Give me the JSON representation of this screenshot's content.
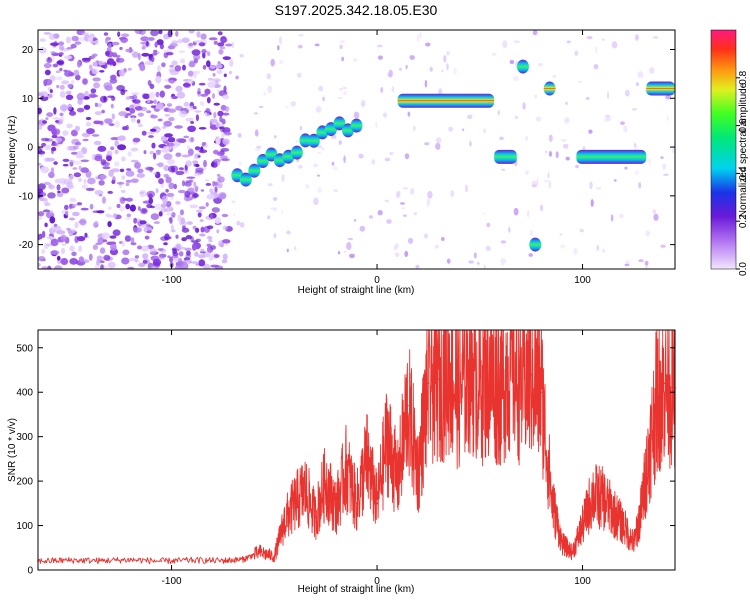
{
  "title": "S197.2025.342.18.05.E30",
  "colors": {
    "snr_line": "#e8332f",
    "frame": "#000000",
    "background": "#ffffff"
  },
  "chart_data": [
    {
      "type": "heatmap",
      "title": "S197.2025.342.18.05.E30",
      "xlabel": "Height of straight line (km)",
      "ylabel": "Frequency (Hz)",
      "xlim": [
        -165,
        145
      ],
      "ylim": [
        -25,
        24
      ],
      "x_ticks": [
        -100,
        0,
        100
      ],
      "x_tick_labels": [
        "-100",
        "0",
        "100"
      ],
      "y_ticks": [
        20,
        10,
        0,
        -10,
        -20
      ],
      "y_tick_labels": [
        "20",
        "10",
        "0",
        "-10",
        "-20"
      ],
      "colorbar": {
        "label": "Normalized spectral amplitude",
        "range": [
          0,
          1
        ],
        "ticks": [
          0.0,
          0.2,
          0.4,
          0.6,
          0.8
        ],
        "tick_labels": [
          "0.0",
          "0.2",
          "0.4",
          "0.6",
          "0.8"
        ]
      },
      "features": [
        {
          "name": "band-10hz",
          "x_range": [
            10,
            57
          ],
          "freq": 9.5,
          "peak_amplitude": 0.85
        },
        {
          "name": "band-12hz",
          "x_range": [
            131,
            145
          ],
          "freq": 12,
          "peak_amplitude": 0.85
        },
        {
          "name": "band-minus2hz-left",
          "x_range": [
            57,
            68
          ],
          "freq": -2,
          "peak_amplitude": 0.6
        },
        {
          "name": "band-minus2hz-right",
          "x_range": [
            97,
            131
          ],
          "freq": -2,
          "peak_amplitude": 0.55
        },
        {
          "name": "rising-segment",
          "x_range": [
            -68,
            -10
          ],
          "freq_range": [
            -6,
            5
          ],
          "peak_amplitude": 0.6
        },
        {
          "name": "spot-17hz",
          "x": 71,
          "freq": 16.5,
          "peak_amplitude": 0.5
        },
        {
          "name": "spot-12hz",
          "x": 84,
          "freq": 12,
          "peak_amplitude": 0.7
        },
        {
          "name": "spot-minus20hz",
          "x": 77,
          "freq": -20,
          "peak_amplitude": 0.4
        }
      ]
    },
    {
      "type": "line",
      "xlabel": "Height of straight line (km)",
      "ylabel": "SNR (10 * v/v)",
      "xlim": [
        -165,
        145
      ],
      "ylim": [
        0,
        540
      ],
      "x_ticks": [
        -100,
        0,
        100
      ],
      "x_tick_labels": [
        "-100",
        "0",
        "100"
      ],
      "y_ticks": [
        0,
        100,
        200,
        300,
        400,
        500
      ],
      "y_tick_labels": [
        "0",
        "100",
        "200",
        "300",
        "400",
        "500"
      ],
      "series": [
        {
          "name": "SNR",
          "x": [
            -165,
            -150,
            -135,
            -120,
            -105,
            -90,
            -75,
            -65,
            -57,
            -50,
            -45,
            -40,
            -35,
            -30,
            -25,
            -20,
            -15,
            -10,
            -5,
            0,
            5,
            10,
            15,
            20,
            25,
            30,
            35,
            40,
            45,
            50,
            55,
            60,
            65,
            70,
            75,
            80,
            85,
            90,
            95,
            100,
            105,
            110,
            115,
            120,
            125,
            128,
            132,
            136,
            140,
            145
          ],
          "values": [
            20,
            22,
            21,
            23,
            20,
            22,
            21,
            24,
            40,
            30,
            110,
            150,
            180,
            120,
            200,
            140,
            230,
            150,
            250,
            150,
            300,
            200,
            370,
            220,
            420,
            430,
            450,
            400,
            470,
            420,
            440,
            410,
            470,
            420,
            440,
            400,
            160,
            60,
            40,
            100,
            170,
            160,
            130,
            100,
            60,
            120,
            250,
            380,
            420,
            410
          ]
        }
      ]
    }
  ]
}
